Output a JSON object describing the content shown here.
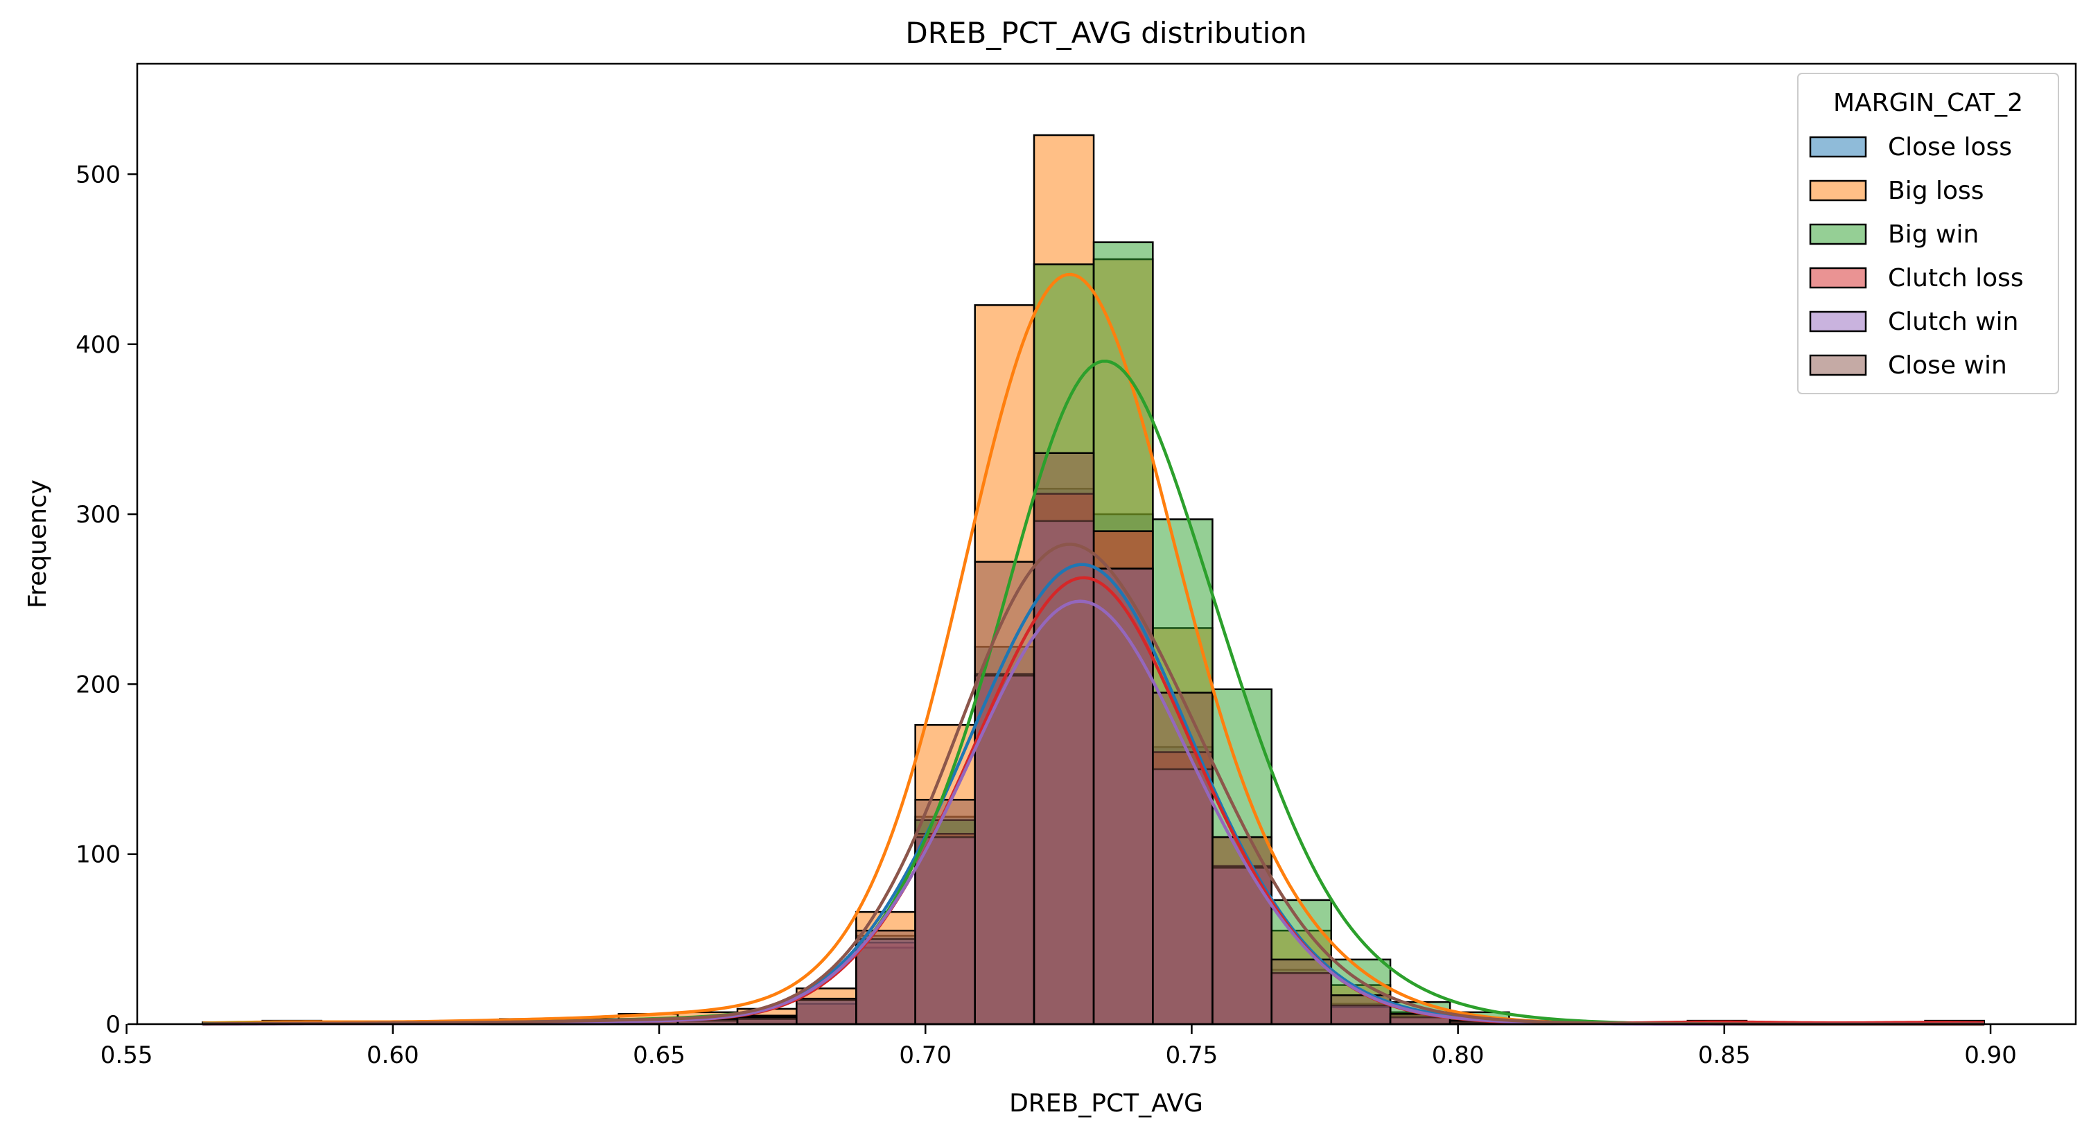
{
  "chart_data": {
    "type": "histogram",
    "title": "DREB_PCT_AVG distribution",
    "xlabel": "DREB_PCT_AVG",
    "ylabel": "Frequency",
    "xlim": [
      0.552,
      0.916
    ],
    "ylim": [
      0,
      565
    ],
    "xticks": [
      0.55,
      0.6,
      0.65,
      0.7,
      0.75,
      0.8,
      0.85,
      0.9
    ],
    "xtick_labels": [
      "0.55",
      "0.60",
      "0.65",
      "0.70",
      "0.75",
      "0.80",
      "0.85",
      "0.90"
    ],
    "yticks": [
      0,
      100,
      200,
      300,
      400,
      500
    ],
    "ytick_labels": [
      "0",
      "100",
      "200",
      "300",
      "400",
      "500"
    ],
    "bin_edges": [
      0.5643,
      0.5755,
      0.5866,
      0.5978,
      0.6089,
      0.6201,
      0.6312,
      0.6424,
      0.6535,
      0.6647,
      0.6758,
      0.687,
      0.6981,
      0.7093,
      0.7204,
      0.7316,
      0.7427,
      0.7539,
      0.765,
      0.7762,
      0.7873,
      0.7985,
      0.8096,
      0.8208,
      0.8319,
      0.8431,
      0.8542,
      0.8654,
      0.8765,
      0.8877,
      0.8988
    ],
    "grid": false,
    "legend": {
      "title": "MARGIN_CAT_2",
      "position": "upper right"
    },
    "series": [
      {
        "name": "Close loss",
        "color": "#1f77b4",
        "values": [
          1,
          0,
          0,
          1,
          1,
          1,
          1,
          2,
          3,
          4,
          14,
          52,
          122,
          222,
          315,
          300,
          163,
          93,
          32,
          12,
          5,
          2,
          1,
          0,
          0,
          0,
          1,
          0,
          0,
          0
        ]
      },
      {
        "name": "Big loss",
        "color": "#ff7f0e",
        "values": [
          1,
          2,
          1,
          1,
          2,
          3,
          3,
          6,
          7,
          9,
          21,
          66,
          176,
          423,
          523,
          450,
          233,
          110,
          55,
          23,
          7,
          3,
          1,
          0,
          0,
          1,
          1,
          0,
          0,
          0
        ]
      },
      {
        "name": "Big win",
        "color": "#2ca02c",
        "values": [
          1,
          0,
          1,
          0,
          1,
          1,
          2,
          3,
          4,
          5,
          12,
          45,
          120,
          206,
          447,
          460,
          297,
          197,
          73,
          38,
          13,
          7,
          2,
          1,
          0,
          0,
          0,
          0,
          0,
          0
        ]
      },
      {
        "name": "Clutch loss",
        "color": "#d62728",
        "values": [
          0,
          1,
          0,
          0,
          1,
          1,
          1,
          2,
          2,
          3,
          12,
          48,
          112,
          205,
          312,
          290,
          160,
          93,
          30,
          10,
          4,
          1,
          0,
          0,
          1,
          2,
          1,
          0,
          1,
          2
        ]
      },
      {
        "name": "Clutch win",
        "color": "#9467bd",
        "values": [
          0,
          0,
          1,
          0,
          0,
          1,
          1,
          2,
          2,
          3,
          14,
          50,
          110,
          205,
          296,
          268,
          150,
          92,
          30,
          11,
          4,
          1,
          1,
          0,
          0,
          0,
          0,
          0,
          0,
          0
        ]
      },
      {
        "name": "Close win",
        "color": "#8c564b",
        "values": [
          0,
          1,
          0,
          1,
          1,
          1,
          2,
          3,
          3,
          4,
          15,
          55,
          132,
          272,
          336,
          268,
          195,
          110,
          38,
          17,
          6,
          2,
          1,
          0,
          1,
          0,
          0,
          0,
          0,
          0
        ]
      }
    ]
  }
}
